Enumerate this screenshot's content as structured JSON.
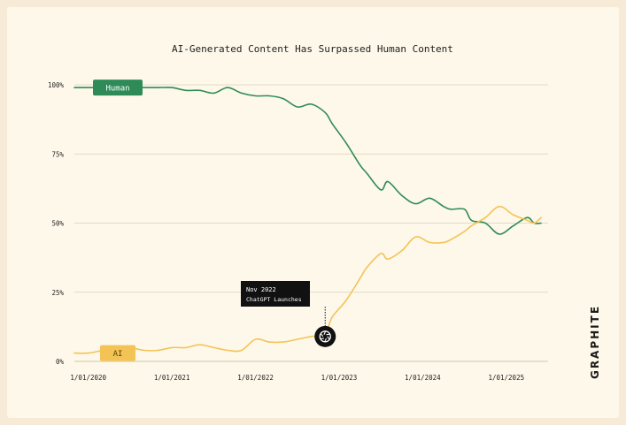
{
  "colors": {
    "background": "#fdf8ea",
    "frame": "#f7ebd8",
    "grid": "#ddd0b8",
    "human": "#2e8b57",
    "ai": "#f4c356",
    "text": "#1f1f1f"
  },
  "brand": {
    "logo_text": "GRAPHITE"
  },
  "chart_data": {
    "type": "line",
    "title": "AI-Generated Content Has Surpassed Human Content",
    "xlabel": "",
    "ylabel": "",
    "x_ticks": [
      "1/01/2020",
      "1/01/2021",
      "1/01/2022",
      "1/01/2023",
      "1/01/2024",
      "1/01/2025"
    ],
    "y_ticks": [
      "0%",
      "25%",
      "50%",
      "75%",
      "100%"
    ],
    "ylim": [
      0,
      100
    ],
    "xlim": [
      "2019-11",
      "2025-07"
    ],
    "grid": true,
    "series": [
      {
        "name": "Human",
        "color": "#2e8b57",
        "points": [
          [
            "2019-11",
            99
          ],
          [
            "2020-01",
            99
          ],
          [
            "2020-03",
            99
          ],
          [
            "2020-05",
            99
          ],
          [
            "2020-07",
            99
          ],
          [
            "2020-09",
            99
          ],
          [
            "2020-11",
            99
          ],
          [
            "2021-01",
            99
          ],
          [
            "2021-03",
            98
          ],
          [
            "2021-05",
            98
          ],
          [
            "2021-07",
            97
          ],
          [
            "2021-09",
            99
          ],
          [
            "2021-11",
            97
          ],
          [
            "2022-01",
            96
          ],
          [
            "2022-03",
            96
          ],
          [
            "2022-05",
            95
          ],
          [
            "2022-07",
            92
          ],
          [
            "2022-09",
            93
          ],
          [
            "2022-11",
            90
          ],
          [
            "2022-12",
            86
          ],
          [
            "2023-02",
            79
          ],
          [
            "2023-04",
            71
          ],
          [
            "2023-05",
            68
          ],
          [
            "2023-07",
            62
          ],
          [
            "2023-08",
            65
          ],
          [
            "2023-10",
            60
          ],
          [
            "2023-12",
            57
          ],
          [
            "2024-02",
            59
          ],
          [
            "2024-04",
            56
          ],
          [
            "2024-05",
            55
          ],
          [
            "2024-07",
            55
          ],
          [
            "2024-08",
            51
          ],
          [
            "2024-10",
            50
          ],
          [
            "2024-12",
            46
          ],
          [
            "2025-02",
            49
          ],
          [
            "2025-04",
            52
          ],
          [
            "2025-05",
            50
          ],
          [
            "2025-06",
            50
          ]
        ]
      },
      {
        "name": "AI",
        "color": "#f4c356",
        "points": [
          [
            "2019-11",
            3
          ],
          [
            "2020-01",
            3
          ],
          [
            "2020-03",
            4
          ],
          [
            "2020-05",
            5
          ],
          [
            "2020-07",
            5
          ],
          [
            "2020-09",
            4
          ],
          [
            "2020-11",
            4
          ],
          [
            "2021-01",
            5
          ],
          [
            "2021-03",
            5
          ],
          [
            "2021-05",
            6
          ],
          [
            "2021-07",
            5
          ],
          [
            "2021-09",
            4
          ],
          [
            "2021-11",
            4
          ],
          [
            "2022-01",
            8
          ],
          [
            "2022-03",
            7
          ],
          [
            "2022-05",
            7
          ],
          [
            "2022-07",
            8
          ],
          [
            "2022-09",
            9
          ],
          [
            "2022-11",
            10
          ],
          [
            "2022-12",
            16
          ],
          [
            "2023-02",
            22
          ],
          [
            "2023-04",
            30
          ],
          [
            "2023-05",
            34
          ],
          [
            "2023-07",
            39
          ],
          [
            "2023-08",
            37
          ],
          [
            "2023-10",
            40
          ],
          [
            "2023-12",
            45
          ],
          [
            "2024-02",
            43
          ],
          [
            "2024-04",
            43
          ],
          [
            "2024-05",
            44
          ],
          [
            "2024-07",
            47
          ],
          [
            "2024-08",
            49
          ],
          [
            "2024-10",
            52
          ],
          [
            "2024-12",
            56
          ],
          [
            "2025-02",
            53
          ],
          [
            "2025-04",
            51
          ],
          [
            "2025-05",
            50
          ],
          [
            "2025-06",
            52
          ]
        ]
      }
    ],
    "annotations": [
      {
        "x": "2022-11",
        "y": 9,
        "line1": "Nov 2022",
        "line2": "ChatGPT Launches",
        "icon": "openai-logo-icon"
      }
    ]
  }
}
